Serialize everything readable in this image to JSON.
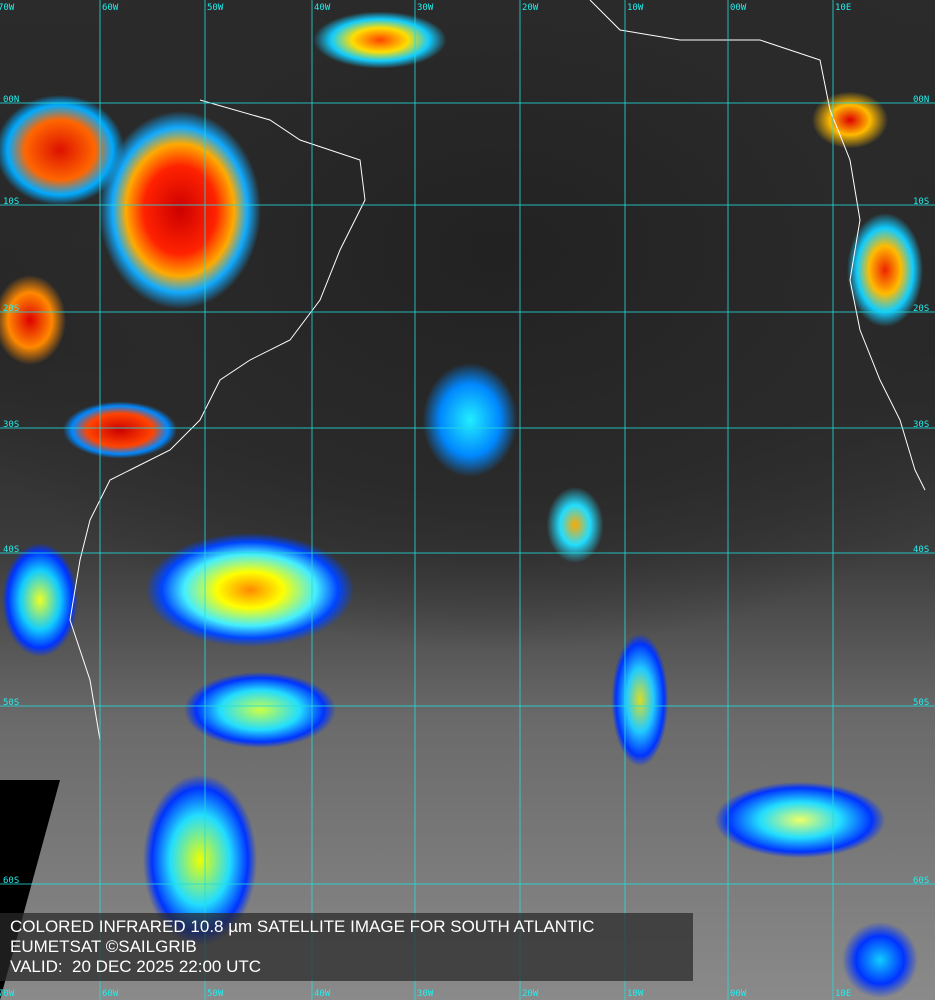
{
  "caption": {
    "title": "COLORED INFRARED 10.8 µm SATELLITE IMAGE FOR SOUTH ATLANTIC",
    "credit": "EUMETSAT ©SAILGRIB",
    "valid": "VALID:  20 DEC 2025 22:00 UTC"
  },
  "grid": {
    "color": "#22dddd",
    "longitudes": [
      "70W",
      "60W",
      "50W",
      "40W",
      "30W",
      "20W",
      "10W",
      "00W",
      "10E"
    ],
    "latitudes": [
      "00N",
      "10S",
      "20S",
      "30S",
      "40S",
      "50S",
      "60S"
    ]
  },
  "colors": {
    "cold_tops": "#dd0000",
    "mid": "#ffdd00",
    "low": "#0033ff",
    "ocean": "#2a2a2a",
    "coast": "#ffffff"
  }
}
